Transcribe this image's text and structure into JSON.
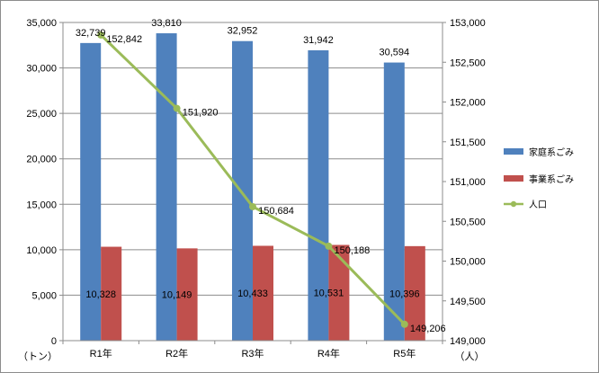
{
  "chart_data": {
    "type": "bar",
    "categories": [
      "R1年",
      "R2年",
      "R3年",
      "R4年",
      "R5年"
    ],
    "series": [
      {
        "name": "家庭系ごみ",
        "kind": "bar",
        "axis": "left",
        "color": "#4f81bd",
        "values": [
          32739,
          33810,
          32952,
          31942,
          30594
        ],
        "labels": [
          "32,739",
          "33,810",
          "32,952",
          "31,942",
          "30,594"
        ]
      },
      {
        "name": "事業系ごみ",
        "kind": "bar",
        "axis": "left",
        "color": "#c0504d",
        "values": [
          10328,
          10149,
          10433,
          10531,
          10396
        ],
        "labels": [
          "10,328",
          "10,149",
          "10,433",
          "10,531",
          "10,396"
        ]
      },
      {
        "name": "人口",
        "kind": "line",
        "axis": "right",
        "color": "#9bbb59",
        "values": [
          152842,
          151920,
          150684,
          150188,
          149206
        ],
        "labels": [
          "152,842",
          "151,920",
          "150,684",
          "150,188",
          "149,206"
        ]
      }
    ],
    "y_left": {
      "range": [
        0,
        35000
      ],
      "unit": "（トン）",
      "ticks": [
        "0",
        "5,000",
        "10,000",
        "15,000",
        "20,000",
        "25,000",
        "30,000",
        "35,000"
      ]
    },
    "y_right": {
      "range": [
        149000,
        153000
      ],
      "unit": "（人）",
      "ticks": [
        "149,000",
        "149,500",
        "150,000",
        "150,500",
        "151,000",
        "151,500",
        "152,000",
        "152,500",
        "153,000"
      ]
    },
    "grid": true,
    "legend": "right"
  }
}
